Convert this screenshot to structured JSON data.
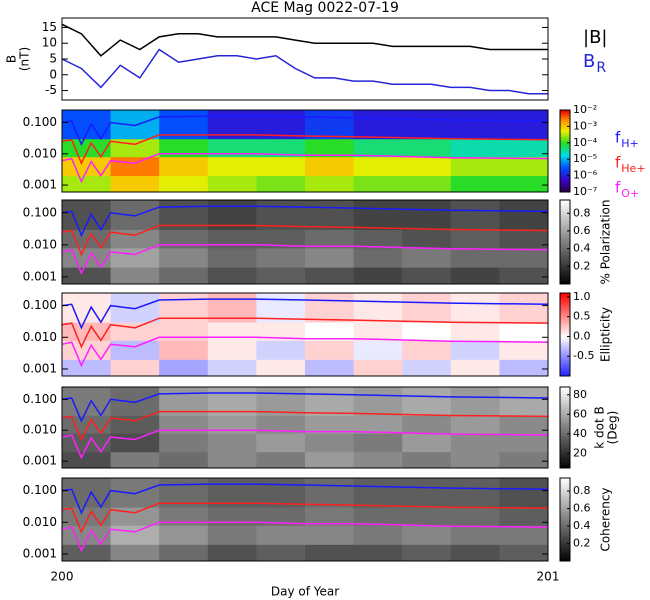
{
  "chart_data": [
    {
      "type": "line",
      "title": "ACE Mag 0022-07-19",
      "ylabel": "B",
      "ylabel2": "(nT)",
      "x": [
        200,
        200.04,
        200.08,
        200.12,
        200.16,
        200.2,
        200.24,
        200.28,
        200.32,
        200.36,
        200.4,
        200.44,
        200.48,
        200.52,
        200.56,
        200.6,
        200.64,
        200.68,
        200.72,
        200.76,
        200.8,
        200.84,
        200.88,
        200.92,
        200.96,
        201
      ],
      "xlim": [
        200,
        201
      ],
      "ylim": [
        -8,
        18
      ],
      "yticks": [
        -5,
        0,
        5,
        10,
        15
      ],
      "series": [
        {
          "name": "|B|",
          "color": "#000000",
          "values": [
            16,
            13,
            6,
            11,
            8,
            12,
            13,
            13,
            12,
            12,
            12,
            12,
            11,
            10,
            10,
            10,
            10,
            9,
            9,
            9,
            9,
            9,
            8,
            8,
            8,
            8
          ]
        },
        {
          "name": "B",
          "subscript": "R",
          "color": "#2424d8",
          "values": [
            5,
            2,
            -4,
            3,
            -1,
            8,
            4,
            5,
            6,
            6,
            5,
            6,
            2,
            -1,
            -1,
            -2,
            -2,
            -3,
            -3,
            -3,
            -4,
            -4,
            -5,
            -5,
            -6,
            -6
          ]
        }
      ]
    },
    {
      "type": "heatmap",
      "xlim": [
        200,
        201
      ],
      "ylim": [
        0.0006,
        0.25
      ],
      "log_y": true,
      "yticks": [
        0.001,
        {
          "value": 0.01,
          "label": "0.010"
        },
        {
          "value": 0.1,
          "label": "0.100"
        }
      ],
      "x_edges": [
        200,
        200.1,
        200.2,
        200.3,
        200.4,
        200.5,
        200.6,
        200.7,
        200.8,
        200.9,
        201
      ],
      "y_edges": [
        0.0006,
        0.002,
        0.008,
        0.03,
        0.25
      ],
      "z": [
        [
          0.0003,
          0.001,
          0.0005,
          0.0003,
          0.0002,
          0.0003,
          0.0002,
          0.0002,
          0.0001,
          0.0001
        ],
        [
          0.001,
          0.003,
          0.001,
          0.0005,
          0.0005,
          0.001,
          0.0005,
          0.0005,
          0.0003,
          0.0003
        ],
        [
          0.0001,
          0.0003,
          0.0001,
          5e-05,
          5e-05,
          0.0001,
          5e-05,
          5e-05,
          3e-05,
          3e-05
        ],
        [
          3e-06,
          1e-05,
          3e-06,
          1e-06,
          1e-06,
          2e-06,
          1e-06,
          1e-06,
          1e-06,
          1e-06
        ]
      ],
      "colormap": "rainbow",
      "log_z": true,
      "zlim": [
        1e-07,
        0.01
      ],
      "zticks": [
        {
          "value": 0.01,
          "label": "10⁻²"
        },
        {
          "value": 0.001,
          "label": "10⁻³"
        },
        {
          "value": 0.0001,
          "label": "10⁻⁴"
        },
        {
          "value": 1e-05,
          "label": "10⁻⁵"
        },
        {
          "value": 1e-06,
          "label": "10⁻⁶"
        },
        {
          "value": 1e-07,
          "label": "10⁻⁷"
        }
      ],
      "x": [
        200,
        200.02,
        200.04,
        200.06,
        200.08,
        200.1,
        200.15,
        200.2,
        200.3,
        200.4,
        200.5,
        200.6,
        200.8,
        201
      ],
      "series": [
        {
          "name": "f",
          "subscript": "H+",
          "color": "#1a1aff",
          "values": [
            0.1,
            0.11,
            0.02,
            0.09,
            0.03,
            0.1,
            0.08,
            0.15,
            0.16,
            0.16,
            0.15,
            0.14,
            0.12,
            0.11
          ]
        },
        {
          "name": "f",
          "subscript": "He+",
          "color": "#ff2020",
          "values": [
            0.025,
            0.028,
            0.005,
            0.022,
            0.008,
            0.025,
            0.02,
            0.04,
            0.04,
            0.04,
            0.037,
            0.035,
            0.03,
            0.028
          ]
        },
        {
          "name": "f",
          "subscript": "O+",
          "color": "#ff20ff",
          "values": [
            0.006,
            0.007,
            0.0013,
            0.0056,
            0.002,
            0.006,
            0.005,
            0.01,
            0.01,
            0.01,
            0.009,
            0.009,
            0.0075,
            0.007
          ]
        }
      ]
    },
    {
      "type": "heatmap",
      "xlim": [
        200,
        201
      ],
      "ylim": [
        0.0006,
        0.25
      ],
      "log_y": true,
      "yticks": [
        0.001,
        {
          "value": 0.01,
          "label": "0.010"
        },
        {
          "value": 0.1,
          "label": "0.100"
        }
      ],
      "x_edges": [
        200,
        200.1,
        200.2,
        200.3,
        200.4,
        200.5,
        200.6,
        200.7,
        200.8,
        200.9,
        201
      ],
      "y_edges": [
        0.0006,
        0.002,
        0.008,
        0.03,
        0.25
      ],
      "z": [
        [
          0.3,
          0.5,
          0.4,
          0.3,
          0.35,
          0.3,
          0.25,
          0.3,
          0.25,
          0.3
        ],
        [
          0.5,
          0.6,
          0.5,
          0.4,
          0.45,
          0.5,
          0.4,
          0.45,
          0.4,
          0.4
        ],
        [
          0.4,
          0.5,
          0.4,
          0.35,
          0.35,
          0.4,
          0.35,
          0.3,
          0.35,
          0.3
        ],
        [
          0.3,
          0.4,
          0.3,
          0.25,
          0.3,
          0.3,
          0.25,
          0.25,
          0.3,
          0.25
        ]
      ],
      "colormap": "gray",
      "zlim": [
        0,
        0.95
      ],
      "zticks": [
        0.2,
        0.4,
        0.6,
        0.8
      ],
      "zlabel": "% Polarization",
      "x": [
        200,
        200.02,
        200.04,
        200.06,
        200.08,
        200.1,
        200.15,
        200.2,
        200.3,
        200.4,
        200.5,
        200.6,
        200.8,
        201
      ],
      "series": [
        {
          "color": "#1a1aff",
          "values": [
            0.1,
            0.11,
            0.02,
            0.09,
            0.03,
            0.1,
            0.08,
            0.15,
            0.16,
            0.16,
            0.15,
            0.14,
            0.12,
            0.11
          ]
        },
        {
          "color": "#ff2020",
          "values": [
            0.025,
            0.028,
            0.005,
            0.022,
            0.008,
            0.025,
            0.02,
            0.04,
            0.04,
            0.04,
            0.037,
            0.035,
            0.03,
            0.028
          ]
        },
        {
          "color": "#ff20ff",
          "values": [
            0.006,
            0.007,
            0.0013,
            0.0056,
            0.002,
            0.006,
            0.005,
            0.01,
            0.01,
            0.01,
            0.009,
            0.009,
            0.0075,
            0.007
          ]
        }
      ]
    },
    {
      "type": "heatmap",
      "xlim": [
        200,
        201
      ],
      "ylim": [
        0.0006,
        0.25
      ],
      "log_y": true,
      "yticks": [
        0.001,
        {
          "value": 0.01,
          "label": "0.010"
        },
        {
          "value": 0.1,
          "label": "0.100"
        }
      ],
      "x_edges": [
        200,
        200.1,
        200.2,
        200.3,
        200.4,
        200.5,
        200.6,
        200.7,
        200.8,
        200.9,
        201
      ],
      "y_edges": [
        0.0006,
        0.002,
        0.008,
        0.03,
        0.25
      ],
      "z": [
        [
          -0.3,
          0.2,
          -0.4,
          -0.2,
          0.1,
          -0.3,
          0.2,
          -0.2,
          0.1,
          -0.3
        ],
        [
          0.2,
          -0.3,
          0.3,
          0.1,
          -0.2,
          0.2,
          -0.1,
          0.2,
          -0.2,
          0.1
        ],
        [
          0.3,
          0.2,
          0.2,
          0.1,
          0.1,
          0.0,
          0.1,
          0.0,
          0.1,
          0.0
        ],
        [
          0.1,
          -0.2,
          0.2,
          0.3,
          -0.1,
          0.2,
          0.1,
          0.2,
          0.1,
          0.2
        ]
      ],
      "colormap": "bwr",
      "zlim": [
        -1,
        1.1
      ],
      "zticks": [
        -0.5,
        {
          "value": 0,
          "label": "0.0"
        },
        0.5,
        {
          "value": 1,
          "label": "1.0"
        }
      ],
      "zlabel": "Ellipticity",
      "x": [
        200,
        200.02,
        200.04,
        200.06,
        200.08,
        200.1,
        200.15,
        200.2,
        200.3,
        200.4,
        200.5,
        200.6,
        200.8,
        201
      ],
      "series": [
        {
          "color": "#1a1aff",
          "values": [
            0.1,
            0.11,
            0.02,
            0.09,
            0.03,
            0.1,
            0.08,
            0.15,
            0.16,
            0.16,
            0.15,
            0.14,
            0.12,
            0.11
          ]
        },
        {
          "color": "#ff2020",
          "values": [
            0.025,
            0.028,
            0.005,
            0.022,
            0.008,
            0.025,
            0.02,
            0.04,
            0.04,
            0.04,
            0.037,
            0.035,
            0.03,
            0.028
          ]
        },
        {
          "color": "#ff20ff",
          "values": [
            0.006,
            0.007,
            0.0013,
            0.0056,
            0.002,
            0.006,
            0.005,
            0.01,
            0.01,
            0.01,
            0.009,
            0.009,
            0.0075,
            0.007
          ]
        }
      ]
    },
    {
      "type": "heatmap",
      "xlim": [
        200,
        201
      ],
      "ylim": [
        0.0006,
        0.25
      ],
      "log_y": true,
      "yticks": [
        0.001,
        {
          "value": 0.01,
          "label": "0.010"
        },
        {
          "value": 0.1,
          "label": "0.100"
        }
      ],
      "x_edges": [
        200,
        200.1,
        200.2,
        200.3,
        200.4,
        200.5,
        200.6,
        200.7,
        200.8,
        200.9,
        201
      ],
      "y_edges": [
        0.0006,
        0.002,
        0.008,
        0.03,
        0.25
      ],
      "z": [
        [
          30,
          45,
          40,
          50,
          45,
          55,
          50,
          45,
          50,
          45
        ],
        [
          35,
          30,
          45,
          50,
          55,
          50,
          45,
          55,
          50,
          50
        ],
        [
          40,
          35,
          50,
          55,
          50,
          55,
          55,
          50,
          55,
          50
        ],
        [
          45,
          40,
          55,
          60,
          55,
          60,
          55,
          60,
          55,
          60
        ]
      ],
      "colormap": "gray",
      "zlim": [
        5,
        88
      ],
      "zticks": [
        20,
        40,
        60,
        80
      ],
      "zlabel": "k dot B",
      "zlabel2": "(Deg)",
      "x": [
        200,
        200.02,
        200.04,
        200.06,
        200.08,
        200.1,
        200.15,
        200.2,
        200.3,
        200.4,
        200.5,
        200.6,
        200.8,
        201
      ],
      "series": [
        {
          "color": "#1a1aff",
          "values": [
            0.1,
            0.11,
            0.02,
            0.09,
            0.03,
            0.1,
            0.08,
            0.15,
            0.16,
            0.16,
            0.15,
            0.14,
            0.12,
            0.11
          ]
        },
        {
          "color": "#ff2020",
          "values": [
            0.025,
            0.028,
            0.005,
            0.022,
            0.008,
            0.025,
            0.02,
            0.04,
            0.04,
            0.04,
            0.037,
            0.035,
            0.03,
            0.028
          ]
        },
        {
          "color": "#ff20ff",
          "values": [
            0.006,
            0.007,
            0.0013,
            0.0056,
            0.002,
            0.006,
            0.005,
            0.01,
            0.01,
            0.01,
            0.009,
            0.009,
            0.0075,
            0.007
          ]
        }
      ]
    },
    {
      "type": "heatmap",
      "xlim": [
        200,
        201
      ],
      "ylim": [
        0.0006,
        0.25
      ],
      "log_y": true,
      "yticks": [
        0.001,
        {
          "value": 0.01,
          "label": "0.010"
        },
        {
          "value": 0.1,
          "label": "0.100"
        }
      ],
      "x_edges": [
        200,
        200.1,
        200.2,
        200.3,
        200.4,
        200.5,
        200.6,
        200.7,
        200.8,
        200.9,
        201
      ],
      "y_edges": [
        0.0006,
        0.002,
        0.008,
        0.03,
        0.25
      ],
      "z": [
        [
          0.35,
          0.5,
          0.4,
          0.3,
          0.35,
          0.3,
          0.3,
          0.35,
          0.3,
          0.35
        ],
        [
          0.5,
          0.65,
          0.55,
          0.45,
          0.5,
          0.5,
          0.45,
          0.5,
          0.45,
          0.45
        ],
        [
          0.45,
          0.55,
          0.45,
          0.4,
          0.4,
          0.45,
          0.4,
          0.4,
          0.4,
          0.35
        ],
        [
          0.4,
          0.45,
          0.4,
          0.35,
          0.35,
          0.4,
          0.35,
          0.35,
          0.35,
          0.3
        ]
      ],
      "colormap": "gray",
      "zlim": [
        0,
        0.95
      ],
      "zticks": [
        0.2,
        0.4,
        0.6,
        0.8
      ],
      "zlabel": "Coherency",
      "x": [
        200,
        200.02,
        200.04,
        200.06,
        200.08,
        200.1,
        200.15,
        200.2,
        200.3,
        200.4,
        200.5,
        200.6,
        200.8,
        201
      ],
      "series": [
        {
          "color": "#1a1aff",
          "values": [
            0.1,
            0.11,
            0.02,
            0.09,
            0.03,
            0.1,
            0.08,
            0.15,
            0.16,
            0.16,
            0.15,
            0.14,
            0.12,
            0.11
          ]
        },
        {
          "color": "#ff2020",
          "values": [
            0.025,
            0.028,
            0.005,
            0.022,
            0.008,
            0.025,
            0.02,
            0.04,
            0.04,
            0.04,
            0.037,
            0.035,
            0.03,
            0.028
          ]
        },
        {
          "color": "#ff20ff",
          "values": [
            0.006,
            0.007,
            0.0013,
            0.0056,
            0.002,
            0.006,
            0.005,
            0.01,
            0.01,
            0.01,
            0.009,
            0.009,
            0.0075,
            0.007
          ]
        }
      ],
      "xticks": [
        200,
        201
      ],
      "xlabel": "Day of Year"
    }
  ]
}
